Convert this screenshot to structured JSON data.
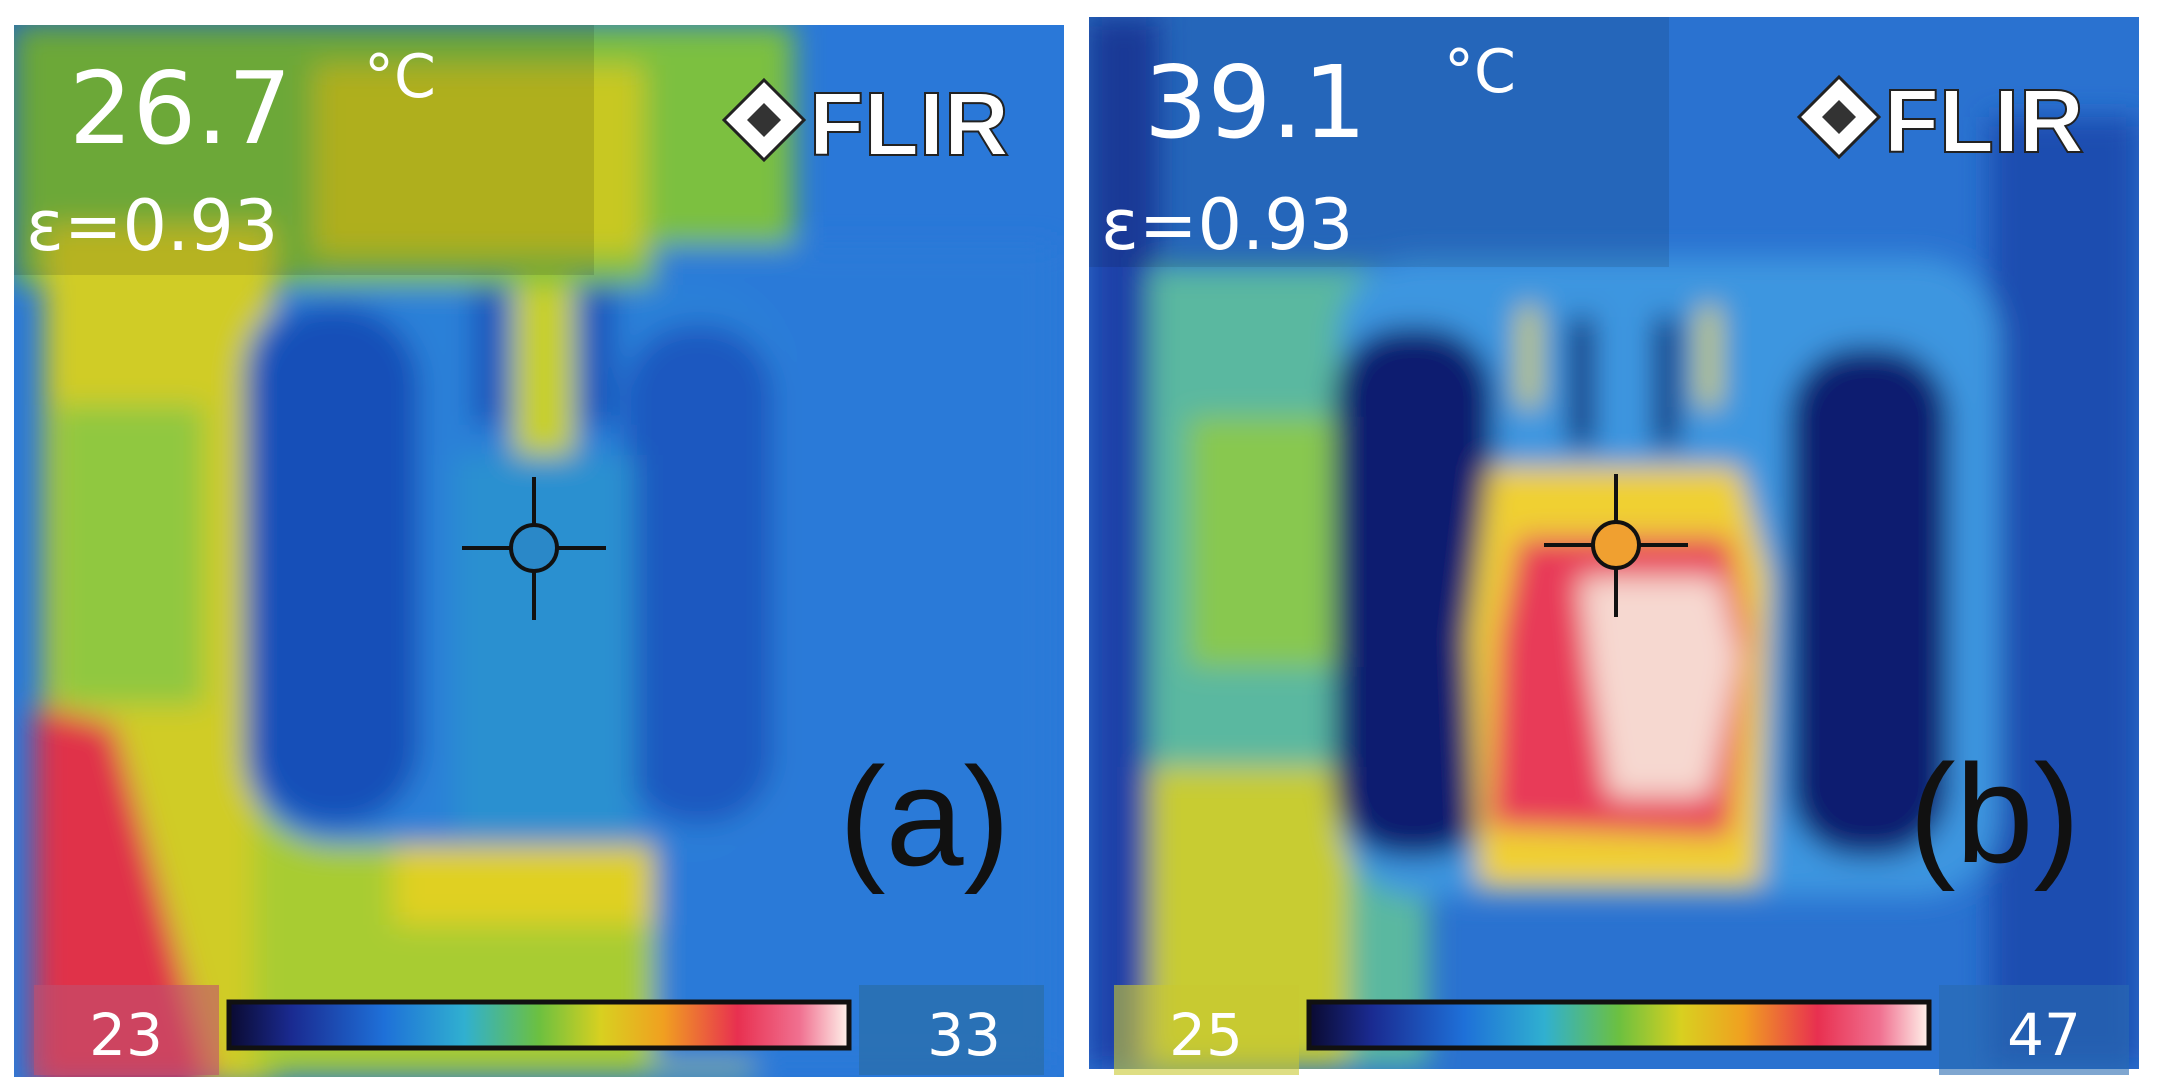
{
  "panels": [
    {
      "temperature": "26.7",
      "unit": "°C",
      "emissivity": "ε=0.93",
      "logo": "FLIR",
      "scale_min": "23",
      "scale_max": "33",
      "label": "(a)"
    },
    {
      "temperature": "39.1",
      "unit": "°C",
      "emissivity": "ε=0.93",
      "logo": "FLIR",
      "scale_min": "25",
      "scale_max": "47",
      "label": "(b)"
    }
  ]
}
